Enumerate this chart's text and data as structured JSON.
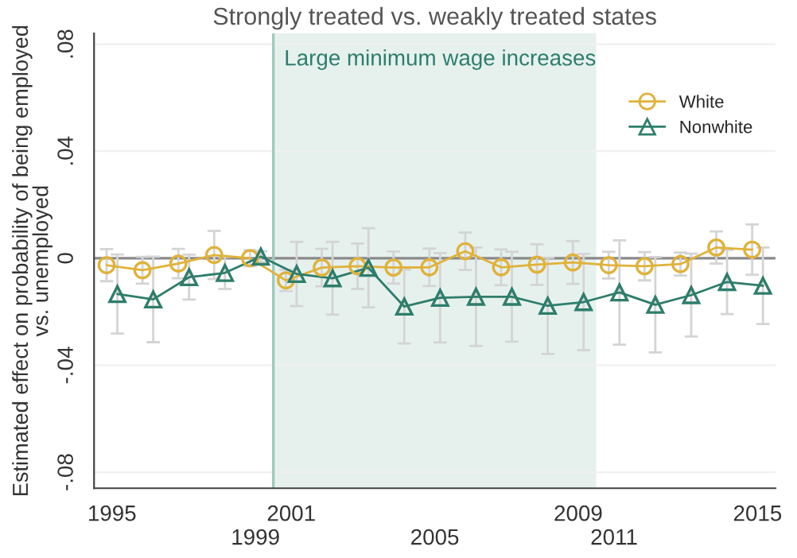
{
  "chart_data": {
    "type": "line",
    "title": "Strongly treated vs. weakly treated states",
    "ylabel": "Estimated effect on probability of being employed\nvs. unemployed",
    "categories": [
      "1995",
      null,
      null,
      null,
      "1999",
      "2001",
      null,
      null,
      null,
      "2005",
      null,
      null,
      null,
      "2009",
      "2011",
      null,
      null,
      null,
      "2015"
    ],
    "series": [
      {
        "name": "White",
        "color": "#e0b23a",
        "marker": "circle",
        "values": [
          -0.0026,
          -0.0045,
          -0.002,
          0.0012,
          0.0,
          -0.0083,
          -0.0035,
          -0.003,
          -0.0035,
          -0.0034,
          0.0026,
          -0.0034,
          -0.0024,
          -0.0016,
          -0.0026,
          -0.003,
          -0.0022,
          0.004,
          0.0032
        ],
        "errors": [
          0.006,
          0.005,
          0.0055,
          0.009,
          0.003,
          0.004,
          0.007,
          0.0085,
          0.006,
          0.007,
          0.007,
          0.0067,
          0.0076,
          0.008,
          0.005,
          0.0053,
          0.0043,
          0.006,
          0.0094
        ]
      },
      {
        "name": "Nonwhite",
        "color": "#2e7d6b",
        "marker": "triangle",
        "values": [
          -0.0134,
          -0.0154,
          -0.0071,
          -0.0055,
          0.0006,
          -0.0059,
          -0.0075,
          -0.0036,
          -0.0181,
          -0.0148,
          -0.0144,
          -0.0144,
          -0.0178,
          -0.0164,
          -0.0128,
          -0.0174,
          -0.0138,
          -0.0089,
          -0.0103
        ],
        "errors": [
          0.0148,
          0.016,
          0.0084,
          0.006,
          0.002,
          0.012,
          0.0136,
          0.0148,
          0.0138,
          0.0167,
          0.0184,
          0.0168,
          0.018,
          0.018,
          0.0195,
          0.0178,
          0.0155,
          0.012,
          0.0143
        ]
      }
    ],
    "ylim": [
      -0.086,
      0.084
    ],
    "yticks": [
      {
        "value": -0.08,
        "label": "-.08"
      },
      {
        "value": -0.04,
        "label": "-.04"
      },
      {
        "value": 0,
        "label": "0"
      },
      {
        "value": 0.04,
        "label": ".04"
      },
      {
        "value": 0.08,
        "label": ".08"
      }
    ],
    "bands": [
      {
        "axis": "x",
        "from": "2001",
        "to": "2009",
        "label": "Large minimum wage increases",
        "color": "#e6f1ee"
      }
    ],
    "ref_lines": [
      {
        "axis": "y",
        "value": 0,
        "color": "#8a8a8a"
      },
      {
        "axis": "x",
        "value": "2001",
        "color": "#9fcabd"
      }
    ],
    "grid": "y",
    "legend": "top right"
  }
}
